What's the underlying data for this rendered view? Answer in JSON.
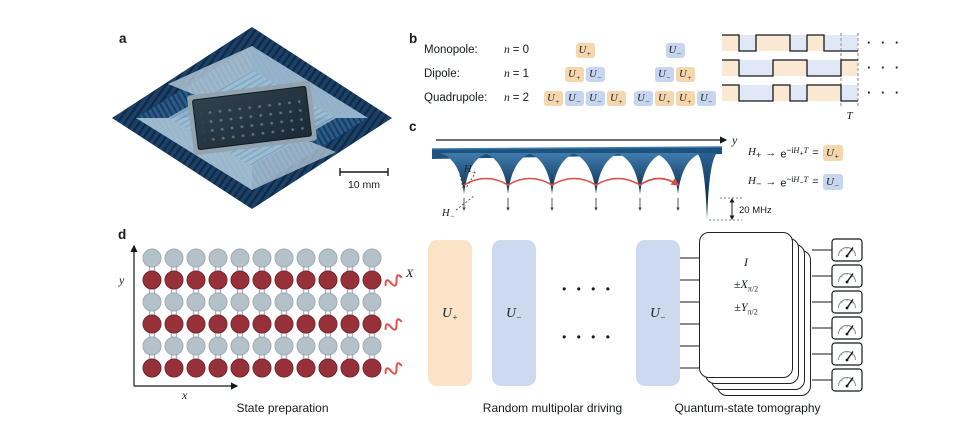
{
  "colors": {
    "orange": "#f6d7ad",
    "blue": "#c7d5ee",
    "orange_light": "#fae3c6",
    "blue_light": "#cdd9ef",
    "red_qubit": "#963039",
    "gray_qubit": "#b5c1c9",
    "navy": "#1d4263",
    "red_wave": "#e2504a"
  },
  "panel_labels": {
    "a": "a",
    "b": "b",
    "c": "c",
    "d": "d"
  },
  "a": {
    "scale_label": "10 mm"
  },
  "b": {
    "u": "U",
    "rows": [
      {
        "name": "Monopole:",
        "n_it": "n",
        "n_eq": "= 0",
        "g1": [
          "+"
        ],
        "g2": [
          "−"
        ]
      },
      {
        "name": "Dipole:",
        "n_it": "n",
        "n_eq": "= 1",
        "g1": [
          "+",
          "−"
        ],
        "g2": [
          "−",
          "+"
        ]
      },
      {
        "name": "Quadrupole:",
        "n_it": "n",
        "n_eq": "= 2",
        "g1": [
          "+",
          "−",
          "−",
          "+"
        ],
        "g2": [
          "−",
          "+",
          "+",
          "−"
        ]
      }
    ],
    "waves": [
      {
        "dirs": [
          1,
          -1,
          1,
          1,
          -1,
          1,
          -1,
          -1
        ]
      },
      {
        "dirs": [
          1,
          -1,
          -1,
          1,
          1,
          -1,
          -1,
          1
        ]
      },
      {
        "dirs": [
          1,
          -1,
          -1,
          1,
          -1,
          1,
          1,
          -1
        ]
      }
    ],
    "dots": "· · ·",
    "period_label": "T"
  },
  "c": {
    "axis_label": "y",
    "h_plus": {
      "h": "H",
      "s": "+"
    },
    "h_minus": {
      "h": "H",
      "s": "−"
    },
    "depth_label": "20 MHz",
    "eq1": {
      "lhs": "H",
      "lhs_sub": "+",
      "arrow": "→",
      "base": "e",
      "exp_pre": "−i",
      "exp_h": "H",
      "exp_sub": "+",
      "exp_t": "T",
      "equals": "=",
      "u": "U",
      "u_sub": "+"
    },
    "eq2": {
      "lhs": "H",
      "lhs_sub": "−",
      "arrow": "→",
      "base": "e",
      "exp_pre": "−i",
      "exp_h": "H",
      "exp_sub": "−",
      "exp_t": "T",
      "equals": "=",
      "u": "U",
      "u_sub": "−"
    }
  },
  "d": {
    "axis_x": "x",
    "axis_y": "y",
    "x_gate": "X",
    "lattice": {
      "cols": 11,
      "row_colors": [
        "gray",
        "red",
        "gray",
        "red",
        "gray",
        "red"
      ]
    },
    "u_plus": {
      "u": "U",
      "s": "+"
    },
    "u_minus_1": {
      "u": "U",
      "s": "−"
    },
    "u_minus_2": {
      "u": "U",
      "s": "−"
    },
    "dots_rows": [
      "• • • •",
      "• • • •"
    ],
    "tomography": {
      "i": "I",
      "x_pm": "±",
      "x": "X",
      "x_sub": "π/2",
      "y_pm": "±",
      "y": "Y",
      "y_sub": "π/2"
    },
    "meters": 6,
    "captions": {
      "state_prep": "State preparation",
      "driving": "Random multipolar driving",
      "tomo": "Quantum-state tomography"
    }
  }
}
